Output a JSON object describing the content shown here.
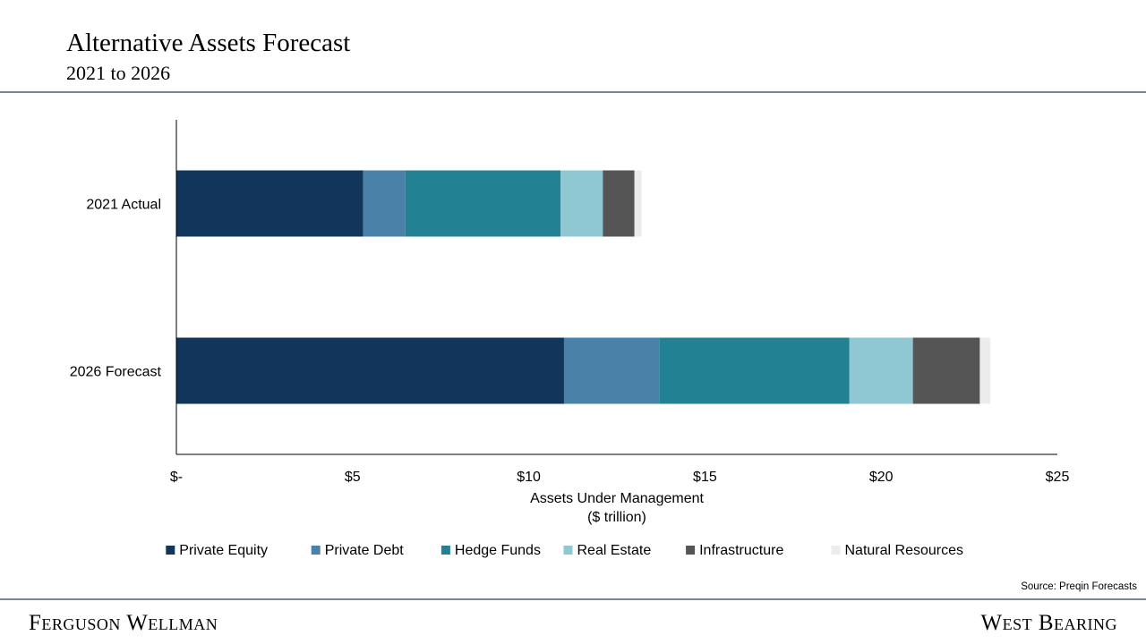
{
  "header": {
    "title": "Alternative Assets Forecast",
    "subtitle": "2021 to 2026"
  },
  "chart_data": {
    "type": "bar",
    "orientation": "horizontal",
    "stacked": true,
    "categories": [
      "2021 Actual",
      "2026 Forecast"
    ],
    "series": [
      {
        "name": "Private Equity",
        "color": "#12355b",
        "values": [
          5.3,
          11.0
        ]
      },
      {
        "name": "Private Debt",
        "color": "#4a81a8",
        "values": [
          1.2,
          2.7
        ]
      },
      {
        "name": "Hedge Funds",
        "color": "#228294",
        "values": [
          4.4,
          5.4
        ]
      },
      {
        "name": "Real Estate",
        "color": "#8fc8d3",
        "values": [
          1.2,
          1.8
        ]
      },
      {
        "name": "Infrastructure",
        "color": "#555555",
        "values": [
          0.9,
          1.9
        ]
      },
      {
        "name": "Natural Resources",
        "color": "#ececec",
        "values": [
          0.2,
          0.3
        ]
      }
    ],
    "xlim": [
      0,
      25
    ],
    "xticks": [
      0,
      5,
      10,
      15,
      20,
      25
    ],
    "xtick_labels": [
      "$-",
      "$5",
      "$10",
      "$15",
      "$20",
      "$25"
    ],
    "xlabel": [
      "Assets Under Management",
      "($ trillion)"
    ],
    "ylabel": "",
    "legend_position": "bottom",
    "grid": false
  },
  "source": "Source: Preqin Forecasts",
  "footer": {
    "left_brand": "Ferguson Wellman",
    "right_brand": "West Bearing"
  }
}
